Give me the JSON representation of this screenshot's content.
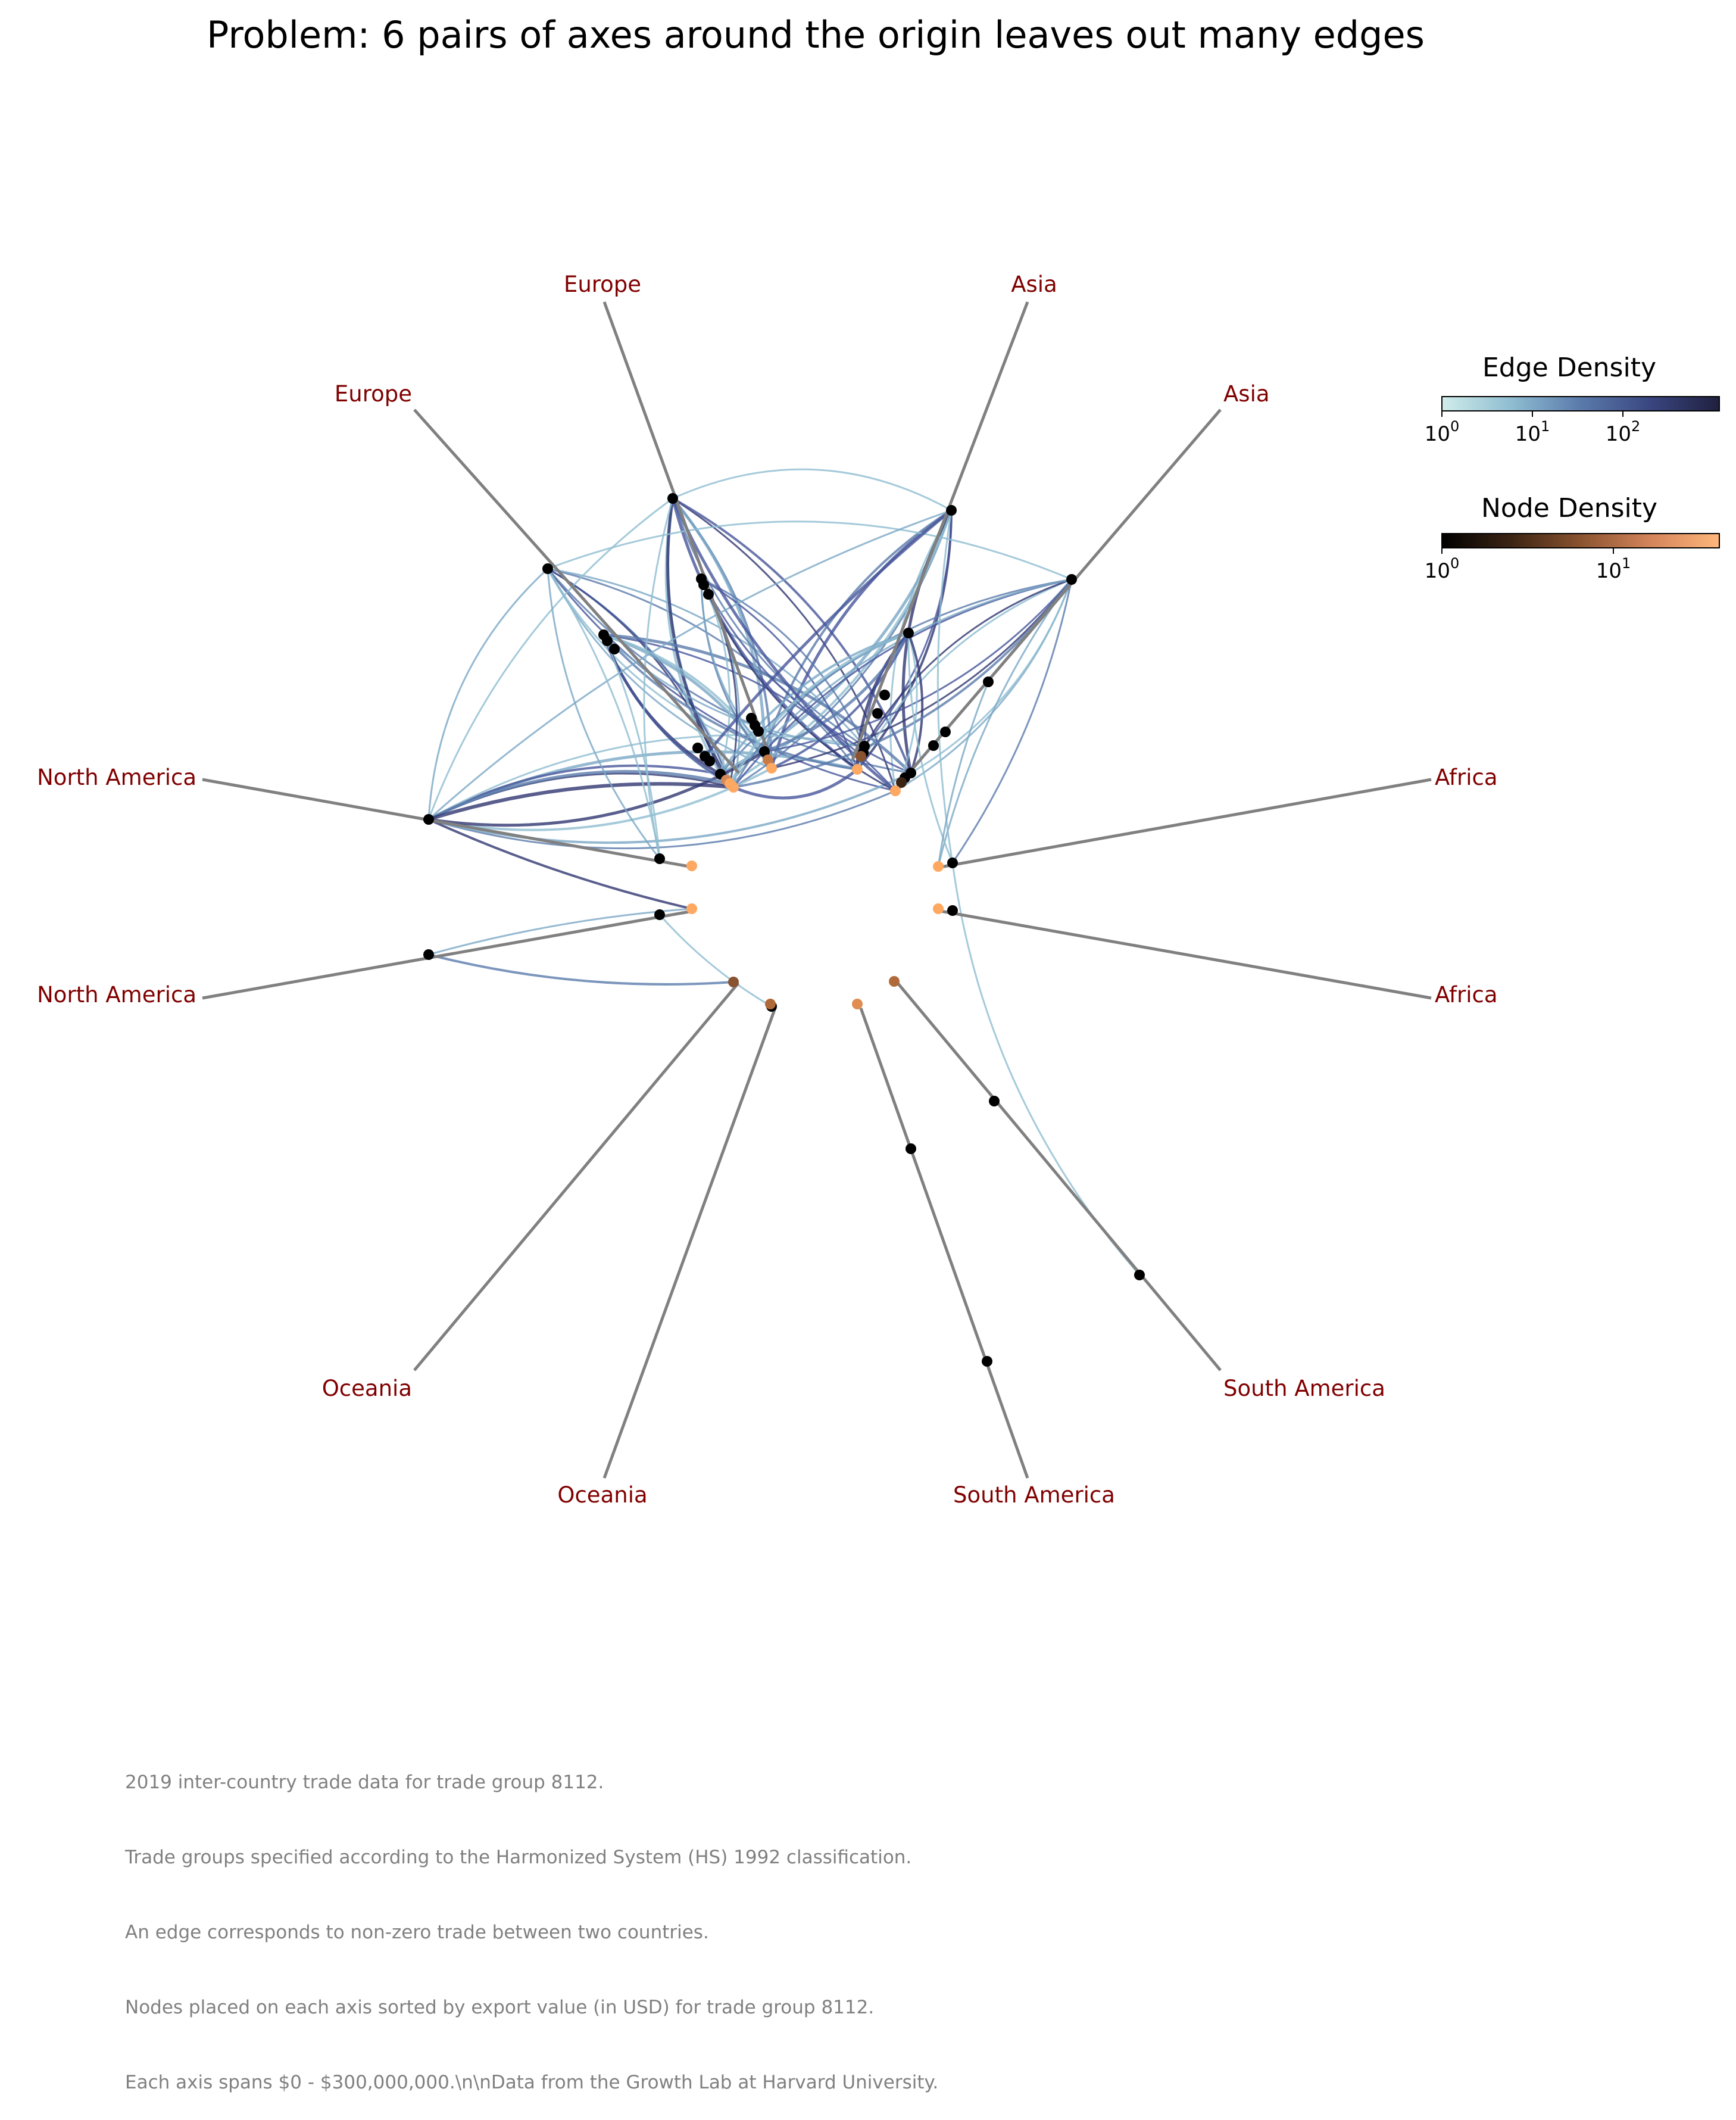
{
  "title": "Problem: 6 pairs of axes around the origin leaves out many edges",
  "caption": [
    "2019 inter-country trade data for trade group 8112.",
    "Trade groups specified according to the Harmonized System (HS) 1992 classification.",
    "An edge corresponds to non-zero trade between two countries.",
    "Nodes placed on each axis sorted by export value (in USD) for trade group 8112.",
    "Each axis spans $0 - $300,000,000.\\n\\nData from the Growth Lab at Harvard University."
  ],
  "axis_labels": {
    "europe_a": "Europe",
    "europe_b": "Europe",
    "asia_a": "Asia",
    "asia_b": "Asia",
    "africa_a": "Africa",
    "africa_b": "Africa",
    "south_america_a": "South America",
    "south_america_b": "South America",
    "oceania_a": "Oceania",
    "oceania_b": "Oceania",
    "north_america_a": "North America",
    "north_america_b": "North America"
  },
  "edge_colorbar": {
    "title": "Edge Density",
    "ticks": [
      "10",
      "10",
      "10"
    ],
    "exponents": [
      "0",
      "1",
      "2"
    ],
    "colors": [
      "#d0ecea",
      "#8fbdd1",
      "#5a7aab",
      "#3a4680",
      "#20203f"
    ]
  },
  "node_colorbar": {
    "title": "Node Density",
    "ticks": [
      "10",
      "10"
    ],
    "exponents": [
      "0",
      "1"
    ],
    "colors": [
      "#000000",
      "#3c2414",
      "#8a5330",
      "#d3845a",
      "#ffb77b"
    ]
  },
  "colors": {
    "axis_line": "#808080",
    "axis_label": "#800000",
    "edge_light": "#8fbdd1",
    "edge_mid": "#5a7aab",
    "edge_dark": "#2f3670",
    "node_low": "#000000",
    "node_mid": "#b06a3a",
    "node_high": "#ffa862"
  }
}
